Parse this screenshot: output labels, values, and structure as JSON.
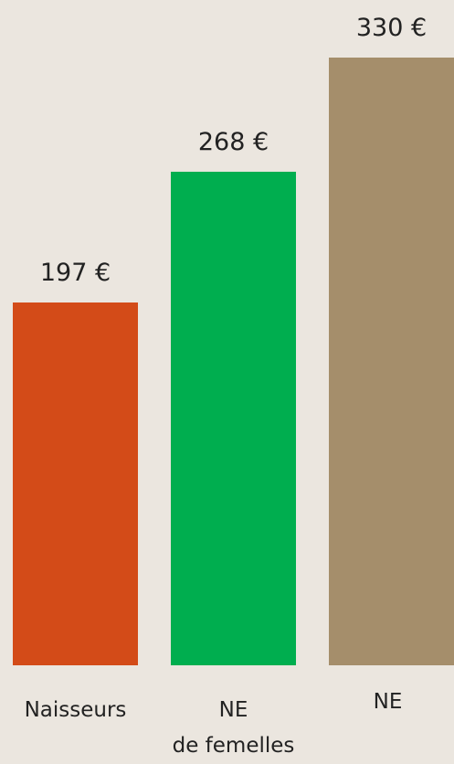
{
  "chart_data": {
    "type": "bar",
    "categories": [
      "Naisseurs",
      "NE\nde femelles",
      "NE"
    ],
    "values": [
      197,
      268,
      330
    ],
    "value_labels": [
      "197 €",
      "268 €",
      "330 €"
    ],
    "colors": [
      "#d34b18",
      "#00ae4f",
      "#a58e6b"
    ]
  }
}
